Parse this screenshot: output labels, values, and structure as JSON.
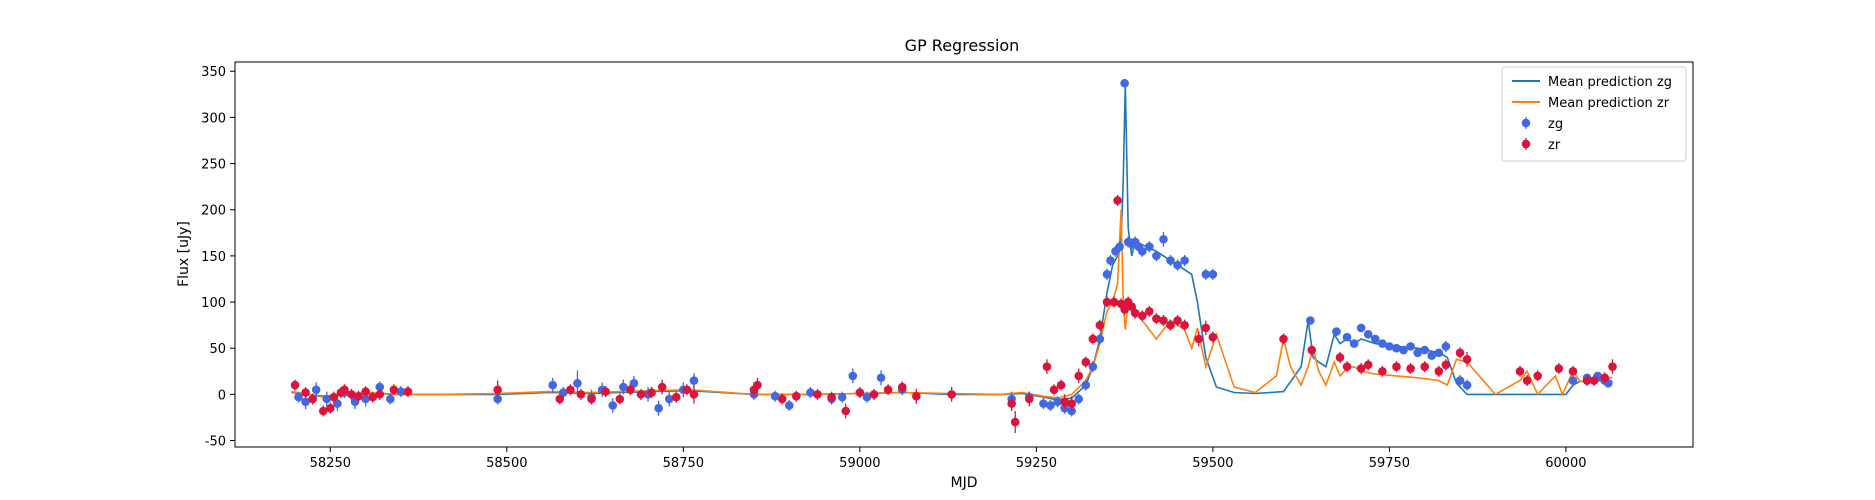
{
  "chart_data": {
    "type": "scatter",
    "title": "GP Regression",
    "xlabel": "MJD",
    "ylabel": "Flux [uJy]",
    "xlim": [
      58115,
      60180
    ],
    "ylim": [
      -57,
      360
    ],
    "xticks": [
      58250,
      58500,
      58750,
      59000,
      59250,
      59500,
      59750,
      60000
    ],
    "yticks": [
      -50,
      0,
      50,
      100,
      150,
      200,
      250,
      300,
      350
    ],
    "grid": false,
    "legend_position": "top-right",
    "colors": {
      "zg_line": "#1f77b4",
      "zr_line": "#ff7f0e",
      "zg_points": "#4169e1",
      "zr_points": "#dc143c"
    },
    "legend": [
      {
        "label": "Mean prediction zg",
        "kind": "line",
        "color": "#1f77b4"
      },
      {
        "label": "Mean prediction zr",
        "kind": "line",
        "color": "#ff7f0e"
      },
      {
        "label": "zg",
        "kind": "errorpoint",
        "color": "#4169e1"
      },
      {
        "label": "zr",
        "kind": "errorpoint",
        "color": "#dc143c"
      }
    ],
    "series": [
      {
        "name": "Mean prediction zg",
        "kind": "line",
        "color": "#1f77b4",
        "x": [
          58195,
          58240,
          58300,
          58350,
          58400,
          58487,
          58560,
          58620,
          58700,
          58760,
          58850,
          58930,
          59000,
          59060,
          59130,
          59200,
          59230,
          59260,
          59280,
          59300,
          59320,
          59330,
          59340,
          59350,
          59358,
          59365,
          59370,
          59373,
          59376,
          59380,
          59385,
          59390,
          59400,
          59420,
          59440,
          59460,
          59470,
          59478,
          59490,
          59505,
          59530,
          59560,
          59600,
          59625,
          59635,
          59642,
          59650,
          59660,
          59672,
          59680,
          59690,
          59700,
          59710,
          59730,
          59760,
          59790,
          59820,
          59832,
          59845,
          59860,
          59900,
          59950,
          60000,
          60010,
          60020,
          60040,
          60066
        ],
        "y": [
          2,
          -2,
          1,
          0,
          0,
          0,
          2,
          1,
          3,
          4,
          0,
          0,
          1,
          2,
          0,
          0,
          1,
          -3,
          -6,
          -4,
          10,
          30,
          60,
          110,
          140,
          150,
          170,
          230,
          336,
          180,
          150,
          165,
          162,
          155,
          145,
          135,
          130,
          100,
          40,
          8,
          2,
          1,
          3,
          30,
          80,
          40,
          35,
          30,
          65,
          55,
          60,
          55,
          60,
          55,
          52,
          50,
          45,
          40,
          12,
          0,
          0,
          0,
          0,
          10,
          14,
          15,
          14
        ]
      },
      {
        "name": "Mean prediction zr",
        "kind": "line",
        "color": "#ff7f0e",
        "x": [
          58195,
          58240,
          58300,
          58350,
          58400,
          58487,
          58560,
          58620,
          58700,
          58760,
          58850,
          58930,
          59000,
          59060,
          59130,
          59200,
          59230,
          59260,
          59280,
          59300,
          59320,
          59330,
          59340,
          59350,
          59358,
          59365,
          59370,
          59373,
          59376,
          59380,
          59385,
          59390,
          59400,
          59420,
          59440,
          59460,
          59470,
          59478,
          59490,
          59505,
          59530,
          59560,
          59590,
          59600,
          59610,
          59625,
          59635,
          59642,
          59650,
          59660,
          59672,
          59680,
          59690,
          59700,
          59710,
          59730,
          59760,
          59790,
          59820,
          59832,
          59845,
          59860,
          59900,
          59935,
          59945,
          59960,
          59985,
          59995,
          60010,
          60020,
          60040,
          60066
        ],
        "y": [
          3,
          -3,
          2,
          0,
          0,
          1,
          3,
          2,
          4,
          5,
          0,
          0,
          1,
          2,
          1,
          0,
          2,
          -2,
          -4,
          0,
          15,
          30,
          55,
          90,
          100,
          120,
          200,
          100,
          70,
          100,
          90,
          92,
          80,
          60,
          80,
          70,
          50,
          72,
          30,
          65,
          8,
          2,
          20,
          60,
          30,
          10,
          30,
          50,
          25,
          10,
          35,
          20,
          28,
          30,
          25,
          22,
          20,
          18,
          15,
          10,
          38,
          35,
          0,
          15,
          25,
          0,
          20,
          0,
          25,
          14,
          16,
          18
        ]
      },
      {
        "name": "zg",
        "kind": "errorpoint",
        "color": "#4169e1",
        "x": [
          58205,
          58215,
          58230,
          58245,
          58260,
          58270,
          58285,
          58300,
          58320,
          58335,
          58350,
          58487,
          58565,
          58580,
          58600,
          58620,
          58635,
          58650,
          58665,
          58680,
          58700,
          58715,
          58730,
          58750,
          58765,
          58850,
          58880,
          58900,
          58930,
          58960,
          58975,
          58990,
          59010,
          59030,
          59060,
          59130,
          59215,
          59240,
          59260,
          59270,
          59280,
          59290,
          59300,
          59310,
          59320,
          59330,
          59340,
          59350,
          59355,
          59362,
          59368,
          59375,
          59380,
          59385,
          59390,
          59395,
          59400,
          59410,
          59420,
          59430,
          59440,
          59450,
          59460,
          59490,
          59500,
          59638,
          59675,
          59690,
          59700,
          59710,
          59720,
          59730,
          59740,
          59750,
          59760,
          59770,
          59780,
          59790,
          59800,
          59810,
          59820,
          59830,
          59850,
          59860,
          60010,
          60030,
          60045,
          60055,
          60060
        ],
        "y": [
          -3,
          -8,
          5,
          -5,
          -10,
          2,
          -8,
          -5,
          8,
          -5,
          3,
          -5,
          10,
          2,
          12,
          -3,
          5,
          -12,
          8,
          12,
          0,
          -15,
          -5,
          5,
          15,
          0,
          -2,
          -12,
          2,
          -5,
          -3,
          20,
          -3,
          18,
          5,
          0,
          -5,
          -3,
          -10,
          -12,
          -8,
          -15,
          -18,
          -5,
          10,
          30,
          60,
          130,
          145,
          155,
          160,
          337,
          165,
          163,
          165,
          160,
          155,
          160,
          150,
          168,
          145,
          140,
          145,
          130,
          130,
          80,
          68,
          62,
          55,
          72,
          65,
          60,
          55,
          52,
          50,
          48,
          52,
          45,
          48,
          42,
          45,
          52,
          15,
          10,
          15,
          18,
          20,
          15,
          12
        ],
        "err": [
          6,
          8,
          8,
          8,
          8,
          6,
          8,
          8,
          6,
          6,
          6,
          6,
          8,
          6,
          14,
          8,
          8,
          8,
          8,
          8,
          8,
          8,
          8,
          8,
          8,
          6,
          6,
          6,
          6,
          6,
          6,
          8,
          6,
          8,
          6,
          6,
          8,
          6,
          6,
          6,
          6,
          6,
          6,
          6,
          6,
          6,
          6,
          6,
          6,
          6,
          6,
          4,
          6,
          6,
          6,
          6,
          6,
          6,
          6,
          8,
          6,
          6,
          6,
          6,
          6,
          4,
          4,
          4,
          4,
          4,
          4,
          4,
          4,
          4,
          4,
          4,
          4,
          4,
          4,
          4,
          4,
          6,
          6,
          6,
          4,
          4,
          4,
          4,
          4
        ]
      },
      {
        "name": "zr",
        "kind": "errorpoint",
        "color": "#dc143c",
        "x": [
          58200,
          58215,
          58225,
          58240,
          58250,
          58255,
          58265,
          58270,
          58280,
          58290,
          58300,
          58310,
          58320,
          58340,
          58360,
          58487,
          58575,
          58590,
          58605,
          58620,
          58640,
          58660,
          58675,
          58690,
          58705,
          58720,
          58740,
          58755,
          58765,
          58850,
          58855,
          58890,
          58910,
          58940,
          58960,
          58980,
          59000,
          59020,
          59040,
          59060,
          59080,
          59130,
          59215,
          59220,
          59240,
          59265,
          59275,
          59285,
          59290,
          59300,
          59310,
          59320,
          59330,
          59340,
          59350,
          59360,
          59365,
          59370,
          59375,
          59380,
          59385,
          59390,
          59400,
          59410,
          59420,
          59430,
          59440,
          59450,
          59460,
          59480,
          59490,
          59500,
          59600,
          59640,
          59680,
          59690,
          59710,
          59720,
          59740,
          59760,
          59780,
          59800,
          59820,
          59830,
          59850,
          59860,
          59935,
          59945,
          59960,
          59990,
          60010,
          60030,
          60040,
          60055,
          60066
        ],
        "y": [
          10,
          2,
          -5,
          -18,
          -15,
          -3,
          2,
          5,
          0,
          -2,
          3,
          -3,
          0,
          5,
          3,
          5,
          -5,
          5,
          0,
          -5,
          3,
          -5,
          5,
          0,
          2,
          8,
          -3,
          5,
          0,
          5,
          10,
          -5,
          -2,
          0,
          -3,
          -18,
          2,
          0,
          5,
          8,
          -2,
          0,
          -10,
          -30,
          -5,
          30,
          5,
          10,
          -8,
          -10,
          20,
          35,
          60,
          75,
          100,
          100,
          210,
          98,
          92,
          100,
          95,
          88,
          85,
          90,
          82,
          80,
          75,
          80,
          75,
          60,
          72,
          62,
          60,
          48,
          40,
          30,
          28,
          32,
          25,
          30,
          28,
          30,
          25,
          32,
          45,
          38,
          25,
          15,
          20,
          28,
          25,
          15,
          15,
          18,
          30
        ],
        "err": [
          6,
          6,
          6,
          6,
          6,
          6,
          6,
          6,
          6,
          6,
          6,
          6,
          6,
          6,
          6,
          10,
          6,
          6,
          6,
          6,
          6,
          6,
          6,
          6,
          6,
          8,
          6,
          6,
          10,
          8,
          8,
          6,
          6,
          6,
          6,
          8,
          6,
          6,
          6,
          6,
          8,
          8,
          8,
          12,
          8,
          8,
          6,
          6,
          8,
          8,
          8,
          6,
          6,
          6,
          6,
          6,
          6,
          6,
          6,
          6,
          6,
          6,
          6,
          6,
          6,
          6,
          6,
          6,
          6,
          8,
          8,
          6,
          6,
          6,
          6,
          6,
          6,
          6,
          6,
          6,
          6,
          6,
          6,
          6,
          6,
          8,
          6,
          6,
          6,
          6,
          6,
          6,
          6,
          6,
          8
        ]
      }
    ]
  }
}
